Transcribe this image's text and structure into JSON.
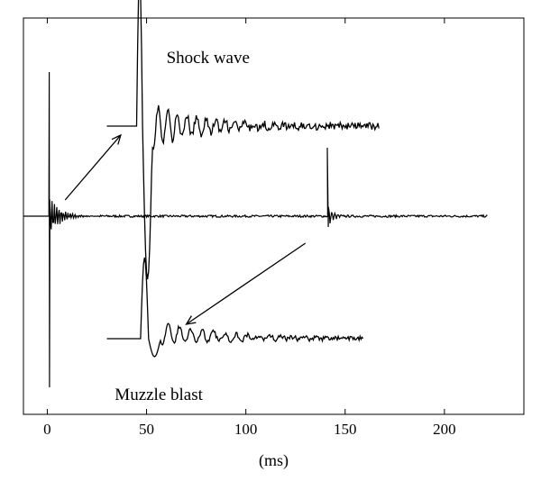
{
  "chart_data": {
    "type": "line",
    "title": "",
    "xlabel": "(ms)",
    "ylabel": "",
    "xlim": [
      -12,
      240
    ],
    "ylim": [
      -1.1,
      1.1
    ],
    "grid": false,
    "legend": "none",
    "x_ticks": [
      0,
      50,
      100,
      150,
      200
    ],
    "x_tick_labels": [
      "0",
      "50",
      "100",
      "150",
      "200"
    ],
    "series": [
      {
        "id": "main-trace",
        "x_range": [
          -12,
          222
        ],
        "events": [
          {
            "x": 1.0,
            "peak": 0.8,
            "trough": -0.95
          },
          {
            "x": 141.3,
            "peak": 0.38,
            "trough": -0.06
          }
        ]
      }
    ],
    "insets": [
      {
        "id": "shock-wave-inset",
        "label": "Shock wave",
        "x_range": [
          30,
          167
        ],
        "pulse_x": 45,
        "peak": 0.85,
        "trough": -0.85
      },
      {
        "id": "muzzle-blast-inset",
        "label": "Muzzle blast",
        "x_range": [
          30,
          159
        ],
        "pulse_x": 48,
        "peak": 0.45,
        "trough": -0.1
      }
    ],
    "annotations": [
      {
        "text": "Shock wave",
        "x": 60,
        "y": 0.85
      },
      {
        "text": "Muzzle blast",
        "x": 34,
        "y": -1.02
      }
    ],
    "arrows": [
      {
        "id": "arrow-to-shock-wave",
        "from": [
          9,
          0.09
        ],
        "to": [
          37,
          0.45
        ]
      },
      {
        "id": "arrow-to-muzzle-blast",
        "from": [
          130,
          -0.15
        ],
        "to": [
          70,
          -0.6
        ]
      }
    ],
    "colors": {
      "line": "#000000",
      "background": "#ffffff"
    }
  }
}
